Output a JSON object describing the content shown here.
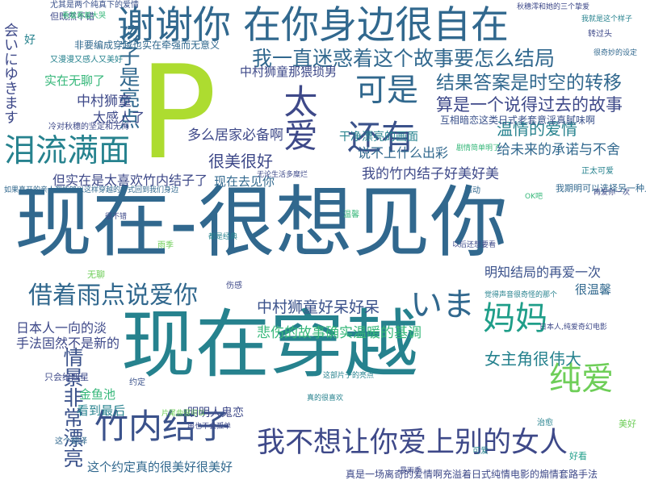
{
  "words": [
    {
      "text": "现在-很想见你",
      "color": "#31688e"
    },
    {
      "text": "现在穿越",
      "color": "#26828e"
    },
    {
      "text": "谢谢你 在你身边很自在",
      "color": "#31688e"
    },
    {
      "text": "P",
      "color": "#addc30"
    },
    {
      "text": "竹内结子",
      "color": "#3b528b"
    },
    {
      "text": "我不想让你爱上别的女人",
      "color": "#3e4989"
    },
    {
      "text": "还有",
      "color": "#3b528b"
    },
    {
      "text": "泪流满面",
      "color": "#26828e"
    },
    {
      "text": "可是",
      "color": "#31688e"
    },
    {
      "text": "太爱",
      "color": "#3e4989"
    },
    {
      "text": "孩子是亮点",
      "color": "#31688e"
    },
    {
      "text": "我一直迷惑着这个故事要怎么结局",
      "color": "#31688e"
    },
    {
      "text": "结果答案是时空的转移",
      "color": "#31688e"
    },
    {
      "text": "算是一个说得过去的故事",
      "color": "#3e4989"
    },
    {
      "text": "温情的爱情",
      "color": "#26828e"
    },
    {
      "text": "借着雨点说爱你",
      "color": "#31688e"
    },
    {
      "text": "妈妈",
      "color": "#1f9e89"
    },
    {
      "text": "いま",
      "color": "#31688e"
    },
    {
      "text": "纯爱",
      "color": "#6ece58"
    },
    {
      "text": "女主角很伟大",
      "color": "#26828e"
    },
    {
      "text": "情景非常漂亮",
      "color": "#3b528b"
    },
    {
      "text": "中村狮童好呆好呆",
      "color": "#3b528b"
    },
    {
      "text": "悲伤的故事确实温暖的基调",
      "color": "#35b779"
    },
    {
      "text": "明知结局的再爱一次",
      "color": "#3b528b"
    },
    {
      "text": "很美很好",
      "color": "#3e4989"
    },
    {
      "text": "多么居家必备啊",
      "color": "#3e4989"
    },
    {
      "text": "说不上什么出彩",
      "color": "#31688e"
    },
    {
      "text": "给未来的承诺与不舍",
      "color": "#31688e"
    },
    {
      "text": "我的竹内结子好美好美",
      "color": "#3e4989"
    },
    {
      "text": "但实在是太喜欢竹内结子了",
      "color": "#3e4989"
    },
    {
      "text": "现在去见你",
      "color": "#31688e"
    },
    {
      "text": "干净漂亮的画面",
      "color": "#26828e"
    },
    {
      "text": "中村狮童那猥琐男",
      "color": "#3e4989"
    },
    {
      "text": "中村狮童",
      "color": "#3e4989"
    },
    {
      "text": "太感人了",
      "color": "#3e4989"
    },
    {
      "text": "实在无聊了",
      "color": "#35b779"
    },
    {
      "text": "会いにゆきます",
      "color": "#3e4989"
    },
    {
      "text": "日本人一向的淡",
      "color": "#3e4989"
    },
    {
      "text": "手法固然不是新的",
      "color": "#3e4989"
    },
    {
      "text": "很温馨",
      "color": "#31688e"
    },
    {
      "text": "金鱼池",
      "color": "#35b779"
    },
    {
      "text": "看到最后",
      "color": "#26828e"
    },
    {
      "text": "明明人鬼恋",
      "color": "#3e4989"
    },
    {
      "text": "这个约定真的很美好很美好",
      "color": "#31688e"
    },
    {
      "text": "真是一场离奇的爱情啊充溢着日式纯情电影的煽情套路手法",
      "color": "#3e4989"
    },
    {
      "text": "非要编成穿越也实在牵强而无意义",
      "color": "#31688e"
    },
    {
      "text": "互相暗恋这类日式老套意淫真腻味啊",
      "color": "#3b528b"
    },
    {
      "text": "我期明可以选择另一种人生",
      "color": "#31688e"
    },
    {
      "text": "好",
      "color": "#26828e"
    },
    {
      "text": "又漫漫又感人又美好",
      "color": "#26828e"
    },
    {
      "text": "冷对秋穗的坚定和无悔",
      "color": "#3e4989"
    },
    {
      "text": "但既然不错",
      "color": "#3e4989"
    },
    {
      "text": "尤其是两个纯真下的爱情",
      "color": "#3b528b"
    },
    {
      "text": "看着看着大哭",
      "color": "#35b779"
    },
    {
      "text": "秋穗澪和她的三个挚爱",
      "color": "#3e4989"
    },
    {
      "text": "转过头",
      "color": "#3e4989"
    },
    {
      "text": "很奇妙的设定",
      "color": "#31688e"
    },
    {
      "text": "我就是这个样子",
      "color": "#26828e"
    },
    {
      "text": "正太可爱",
      "color": "#26828e"
    },
    {
      "text": "再爱你一次",
      "color": "#3e4989"
    },
    {
      "text": "OK吧",
      "color": "#35b779"
    },
    {
      "text": "日本人,纯爱奇幻电影",
      "color": "#3e4989"
    },
    {
      "text": "觉得声音很奇怪的那个",
      "color": "#26828e"
    },
    {
      "text": "无论生活多糜烂",
      "color": "#3e4989"
    },
    {
      "text": "如果真开的亲人都能够以这样穿越的方式回到我们身边",
      "color": "#31688e"
    },
    {
      "text": "只会给四星",
      "color": "#3e4989"
    },
    {
      "text": "这个翻译",
      "color": "#31688e"
    },
    {
      "text": "片尾曲很可以",
      "color": "#6ece58"
    },
    {
      "text": "真的很喜欢",
      "color": "#26828e"
    },
    {
      "text": "再也不会孤单",
      "color": "#3e4989"
    },
    {
      "text": "这部片子的亮点",
      "color": "#26828e"
    },
    {
      "text": "都是经典",
      "color": "#26828e"
    },
    {
      "text": "以后还想要看",
      "color": "#3e4989"
    },
    {
      "text": "剧情简单明了",
      "color": "#35b779"
    },
    {
      "text": "很不错",
      "color": "#3e4989"
    },
    {
      "text": "暴雨季",
      "color": "#3e4989"
    },
    {
      "text": "无聊",
      "color": "#6ece58"
    },
    {
      "text": "好看",
      "color": "#1f9e89"
    },
    {
      "text": "美好",
      "color": "#6ece58"
    },
    {
      "text": "温馨",
      "color": "#35b779"
    },
    {
      "text": "可爱",
      "color": "#26828e"
    },
    {
      "text": "伤感",
      "color": "#3e4989"
    },
    {
      "text": "感动",
      "color": "#31688e"
    },
    {
      "text": "治愈",
      "color": "#26828e"
    },
    {
      "text": "雨季",
      "color": "#6ece58"
    },
    {
      "text": "约定",
      "color": "#3b528b"
    }
  ]
}
